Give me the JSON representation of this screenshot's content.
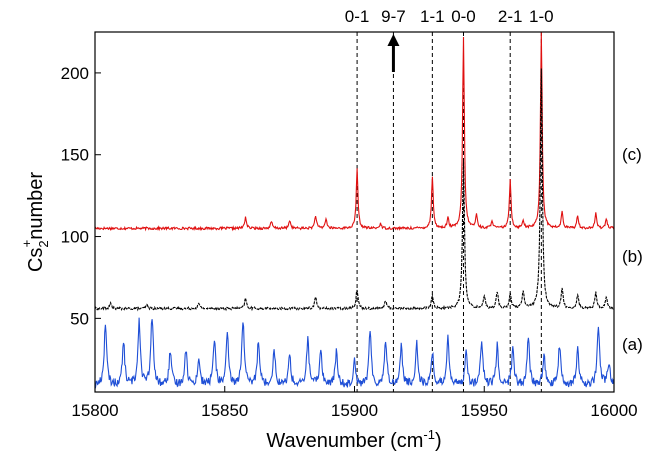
{
  "chart_data": {
    "type": "line",
    "xlabel": {
      "base": "Wavenumber (cm",
      "sup": "-1",
      "tail": ")"
    },
    "ylabel": {
      "base": "Cs",
      "sub": "2",
      "sup": "+",
      "tail": "number"
    },
    "xlim": [
      15800,
      16000
    ],
    "ylim": [
      5,
      225
    ],
    "x_ticks": [
      15800,
      15850,
      15900,
      15950,
      16000
    ],
    "y_ticks": [
      50,
      100,
      150,
      200
    ],
    "grid": false,
    "colors": {
      "a": "#1f4fd6",
      "b": "#000000",
      "c": "#e01010",
      "axis": "#000000",
      "dash": "#000000"
    },
    "peak_markers": [
      {
        "label": "0-1",
        "x": 15901
      },
      {
        "label": "9-7",
        "x": 15915,
        "arrow": true
      },
      {
        "label": "1-1",
        "x": 15930
      },
      {
        "label": "0-0",
        "x": 15942
      },
      {
        "label": "2-1",
        "x": 15960
      },
      {
        "label": "1-0",
        "x": 15972
      }
    ],
    "series": [
      {
        "name": "(c)",
        "baseline": 105,
        "peaks": [
          [
            15858,
            7
          ],
          [
            15868,
            4
          ],
          [
            15875,
            5
          ],
          [
            15885,
            8
          ],
          [
            15889,
            6
          ],
          [
            15901,
            36
          ],
          [
            15910,
            3
          ],
          [
            15930,
            32
          ],
          [
            15936,
            6
          ],
          [
            15942,
            117
          ],
          [
            15947,
            8
          ],
          [
            15953,
            5
          ],
          [
            15960,
            30
          ],
          [
            15965,
            5
          ],
          [
            15972,
            120
          ],
          [
            15980,
            10
          ],
          [
            15986,
            8
          ],
          [
            15993,
            9
          ],
          [
            15997,
            6
          ]
        ]
      },
      {
        "name": "(b)",
        "baseline": 56,
        "peaks": [
          [
            15806,
            3
          ],
          [
            15820,
            2
          ],
          [
            15840,
            3
          ],
          [
            15858,
            6
          ],
          [
            15885,
            7
          ],
          [
            15901,
            12
          ],
          [
            15912,
            5
          ],
          [
            15930,
            8
          ],
          [
            15942,
            90
          ],
          [
            15950,
            8
          ],
          [
            15955,
            10
          ],
          [
            15960,
            9
          ],
          [
            15965,
            10
          ],
          [
            15972,
            147
          ],
          [
            15980,
            12
          ],
          [
            15986,
            8
          ],
          [
            15993,
            10
          ],
          [
            15997,
            7
          ]
        ]
      },
      {
        "name": "(a)",
        "baseline": 9,
        "peaks": [
          [
            15804,
            38
          ],
          [
            15811,
            26
          ],
          [
            15817,
            40
          ],
          [
            15822,
            42
          ],
          [
            15829,
            20
          ],
          [
            15835,
            22
          ],
          [
            15840,
            16
          ],
          [
            15846,
            28
          ],
          [
            15851,
            30
          ],
          [
            15857,
            40
          ],
          [
            15863,
            28
          ],
          [
            15869,
            22
          ],
          [
            15875,
            18
          ],
          [
            15882,
            28
          ],
          [
            15887,
            22
          ],
          [
            15893,
            20
          ],
          [
            15900,
            16
          ],
          [
            15906,
            32
          ],
          [
            15912,
            28
          ],
          [
            15918,
            24
          ],
          [
            15924,
            26
          ],
          [
            15930,
            20
          ],
          [
            15936,
            30
          ],
          [
            15943,
            22
          ],
          [
            15949,
            26
          ],
          [
            15955,
            24
          ],
          [
            15961,
            22
          ],
          [
            15967,
            28
          ],
          [
            15973,
            18
          ],
          [
            15979,
            24
          ],
          [
            15986,
            22
          ],
          [
            15994,
            37
          ],
          [
            15998,
            14
          ]
        ]
      }
    ]
  }
}
